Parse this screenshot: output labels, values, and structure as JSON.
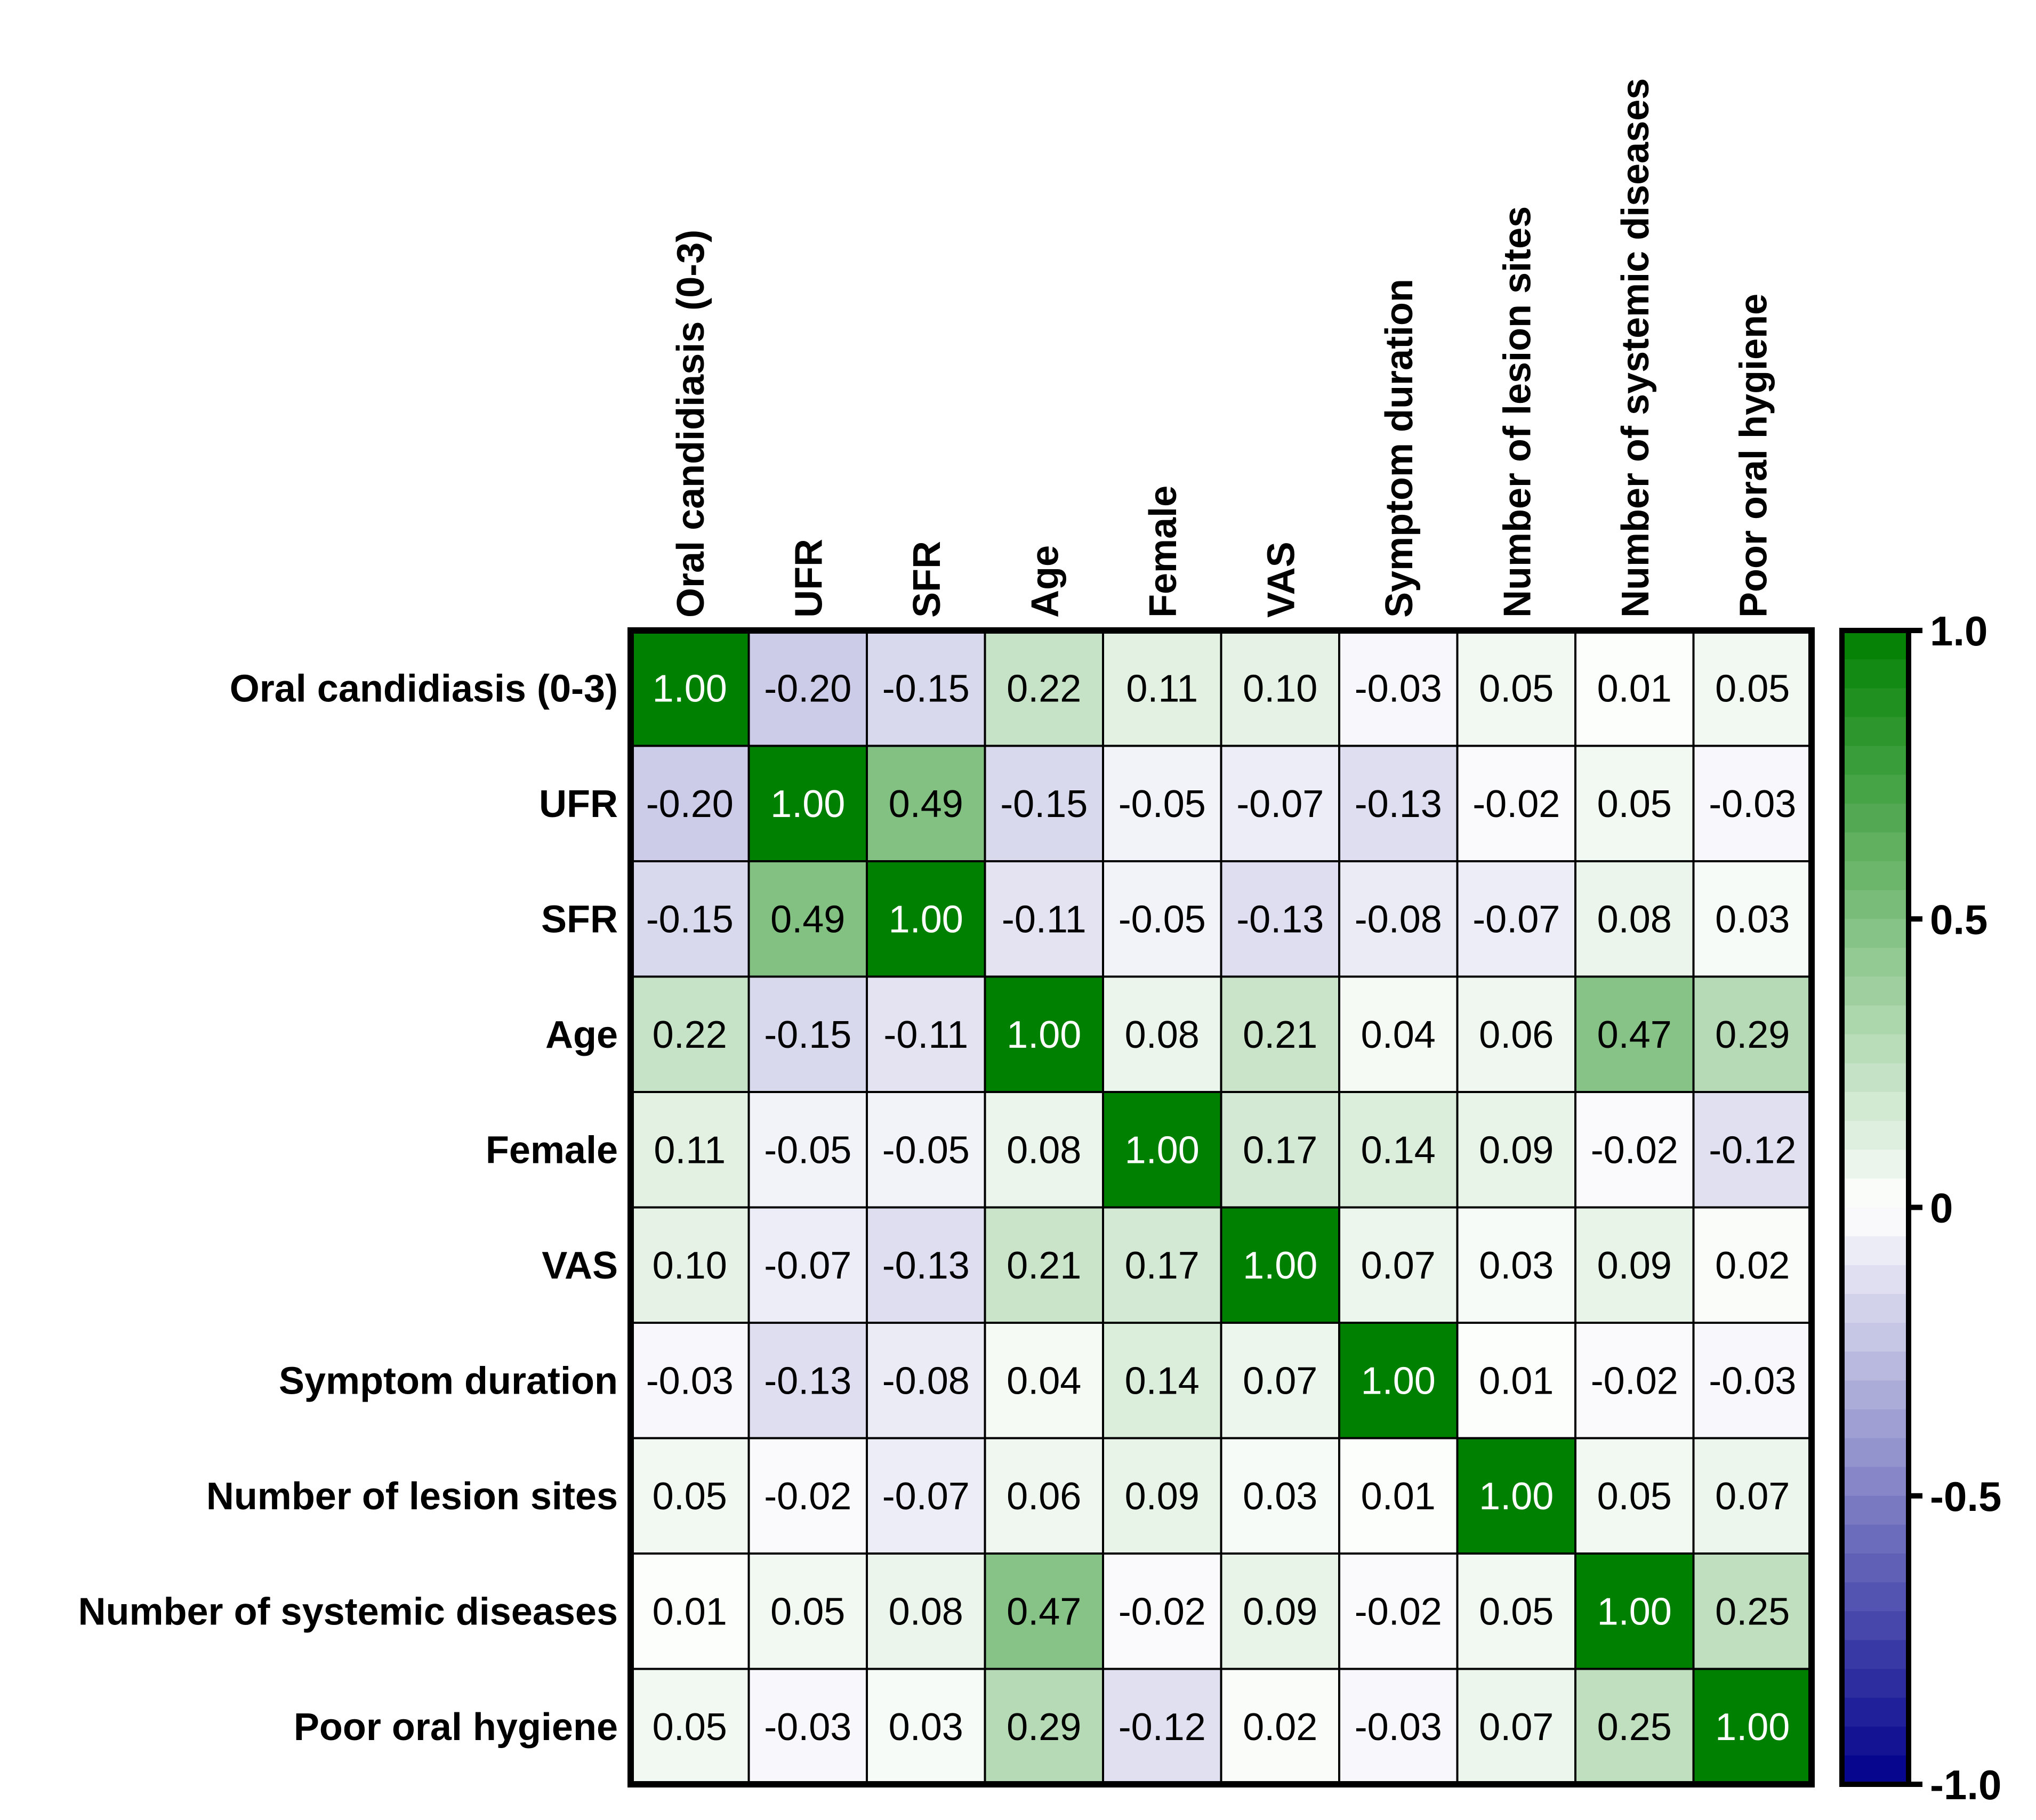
{
  "chart_data": {
    "type": "heatmap",
    "title": "",
    "row_labels": [
      "Oral candidiasis (0-3)",
      "UFR",
      "SFR",
      "Age",
      "Female",
      "VAS",
      "Symptom duration",
      "Number of lesion sites",
      "Number of systemic diseases",
      "Poor oral hygiene"
    ],
    "col_labels": [
      "Oral candidiasis (0-3)",
      "UFR",
      "SFR",
      "Age",
      "Female",
      "VAS",
      "Symptom duration",
      "Number of lesion sites",
      "Number of systemic diseases",
      "Poor oral hygiene"
    ],
    "values": [
      [
        1.0,
        -0.2,
        -0.15,
        0.22,
        0.11,
        0.1,
        -0.03,
        0.05,
        0.01,
        0.05
      ],
      [
        -0.2,
        1.0,
        0.49,
        -0.15,
        -0.05,
        -0.07,
        -0.13,
        -0.02,
        0.05,
        -0.03
      ],
      [
        -0.15,
        0.49,
        1.0,
        -0.11,
        -0.05,
        -0.13,
        -0.08,
        -0.07,
        0.08,
        0.03
      ],
      [
        0.22,
        -0.15,
        -0.11,
        1.0,
        0.08,
        0.21,
        0.04,
        0.06,
        0.47,
        0.29
      ],
      [
        0.11,
        -0.05,
        -0.05,
        0.08,
        1.0,
        0.17,
        0.14,
        0.09,
        -0.02,
        -0.12
      ],
      [
        0.1,
        -0.07,
        -0.13,
        0.21,
        0.17,
        1.0,
        0.07,
        0.03,
        0.09,
        0.02
      ],
      [
        -0.03,
        -0.13,
        -0.08,
        0.04,
        0.14,
        0.07,
        1.0,
        0.01,
        -0.02,
        -0.03
      ],
      [
        0.05,
        -0.02,
        -0.07,
        0.06,
        0.09,
        0.03,
        0.01,
        1.0,
        0.05,
        0.07
      ],
      [
        0.01,
        0.05,
        0.08,
        0.47,
        -0.02,
        0.09,
        -0.02,
        0.05,
        1.0,
        0.25
      ],
      [
        0.05,
        -0.03,
        0.03,
        0.29,
        -0.12,
        0.02,
        -0.03,
        0.07,
        0.25,
        1.0
      ]
    ],
    "value_range": [
      -1.0,
      1.0
    ],
    "colorbar": {
      "ticks": [
        1.0,
        0.5,
        0,
        -0.5,
        -1.0
      ],
      "tick_labels": [
        "1.0",
        "0.5",
        "0",
        "-0.5",
        "-1.0"
      ],
      "max_color": "#008000",
      "mid_color": "#ffffff",
      "min_color": "#00008b",
      "steps": 40,
      "placement": "right"
    }
  }
}
